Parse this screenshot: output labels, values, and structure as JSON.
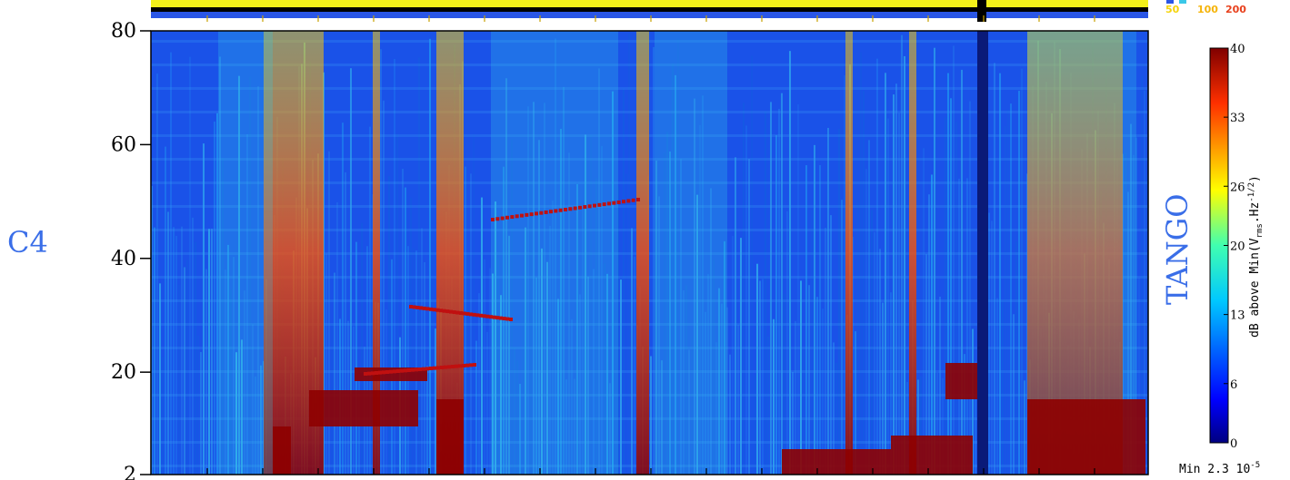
{
  "chart_data": {
    "type": "heatmap",
    "title": "",
    "xlabel": "",
    "ylabel": "",
    "ylim": [
      2,
      80
    ],
    "y_ticks": [
      "80",
      "60",
      "40",
      "20",
      "2"
    ],
    "y_tick_values": [
      80,
      60,
      40,
      20,
      2
    ],
    "left_label": "C4",
    "right_label": "TANGO",
    "colorbar": {
      "title": "dB above Min(V",
      "title_sub": "rms",
      "title_mid": ".Hz",
      "title_sup": "-1/2",
      "title_end": ")",
      "ticks": [
        "40",
        "33",
        "26",
        "20",
        "13",
        "6",
        "0"
      ],
      "tick_values": [
        40,
        33,
        26,
        20,
        13,
        6,
        0
      ],
      "range": [
        0,
        40
      ],
      "colormap": "jet"
    },
    "min_label": "Min 2.3 10",
    "min_exponent": "-5",
    "mini_legend": [
      "50",
      "100",
      "200"
    ],
    "mini_legend_colors": [
      "#f5d40a",
      "#f5b40a",
      "#e8401c"
    ],
    "top_bar_colors": [
      "#f3f01a",
      "#000000",
      "#2a56e6"
    ]
  }
}
